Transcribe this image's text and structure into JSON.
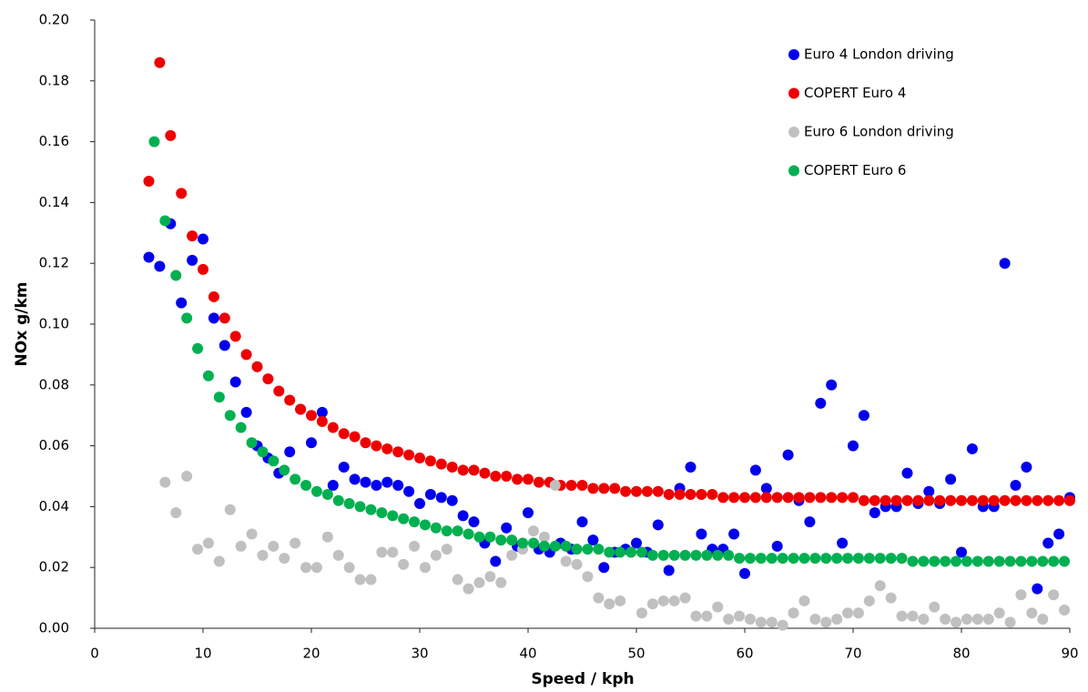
{
  "chart_data": {
    "type": "scatter",
    "xlabel": "Speed / kph",
    "ylabel": "NOx g/km",
    "xlim": [
      0,
      90
    ],
    "xticks": [
      0,
      10,
      20,
      30,
      40,
      50,
      60,
      70,
      80,
      90
    ],
    "ylim": [
      0,
      0.2
    ],
    "yticks": [
      {
        "value": 0,
        "label": "0.00"
      },
      {
        "value": 0.02,
        "label": "0.02"
      },
      {
        "value": 0.04,
        "label": "0.04"
      },
      {
        "value": 0.06,
        "label": "0.06"
      },
      {
        "value": 0.08,
        "label": "0.08"
      },
      {
        "value": 0.1,
        "label": "0.10"
      },
      {
        "value": 0.12,
        "label": "0.12"
      },
      {
        "value": 0.14,
        "label": "0.14"
      },
      {
        "value": 0.16,
        "label": "0.16"
      },
      {
        "value": 0.18,
        "label": "0.18"
      },
      {
        "value": 0.2,
        "label": "0.20"
      }
    ],
    "legend": "top-right",
    "series": [
      {
        "name": "Euro 4 London driving",
        "color": "#0000ee",
        "x": [
          5,
          6,
          7,
          8,
          9,
          10,
          11,
          12,
          13,
          14,
          15,
          16,
          17,
          18,
          19,
          20,
          21,
          22,
          23,
          24,
          25,
          26,
          27,
          28,
          29,
          30,
          31,
          32,
          33,
          34,
          35,
          36,
          37,
          38,
          39,
          40,
          41,
          42,
          43,
          44,
          45,
          46,
          47,
          48,
          49,
          50,
          51,
          52,
          53,
          54,
          55,
          56,
          57,
          58,
          59,
          60,
          61,
          62,
          63,
          64,
          65,
          66,
          67,
          68,
          69,
          70,
          71,
          72,
          73,
          74,
          75,
          76,
          77,
          78,
          79,
          80,
          81,
          82,
          83,
          84,
          85,
          86,
          87,
          88,
          89,
          90
        ],
        "values": [
          0.122,
          0.119,
          0.133,
          0.107,
          0.121,
          0.128,
          0.102,
          0.093,
          0.081,
          0.071,
          0.06,
          0.056,
          0.051,
          0.058,
          0.072,
          0.061,
          0.071,
          0.047,
          0.053,
          0.049,
          0.048,
          0.047,
          0.048,
          0.047,
          0.045,
          0.041,
          0.044,
          0.043,
          0.042,
          0.037,
          0.035,
          0.028,
          0.022,
          0.033,
          0.027,
          0.038,
          0.026,
          0.025,
          0.028,
          0.026,
          0.035,
          0.029,
          0.02,
          0.025,
          0.026,
          0.028,
          0.025,
          0.034,
          0.019,
          0.046,
          0.053,
          0.031,
          0.026,
          0.026,
          0.031,
          0.018,
          0.052,
          0.046,
          0.027,
          0.057,
          0.042,
          0.035,
          0.074,
          0.08,
          0.028,
          0.06,
          0.07,
          0.038,
          0.04,
          0.04,
          0.051,
          0.041,
          0.045,
          0.041,
          0.049,
          0.025,
          0.059,
          0.04,
          0.04,
          0.12,
          0.047,
          0.053,
          0.013,
          0.028,
          0.031,
          0.043
        ]
      },
      {
        "name": "COPERT Euro 4",
        "color": "#ee0000",
        "x": [
          5,
          6,
          7,
          8,
          9,
          10,
          11,
          12,
          13,
          14,
          15,
          16,
          17,
          18,
          19,
          20,
          21,
          22,
          23,
          24,
          25,
          26,
          27,
          28,
          29,
          30,
          31,
          32,
          33,
          34,
          35,
          36,
          37,
          38,
          39,
          40,
          41,
          42,
          43,
          44,
          45,
          46,
          47,
          48,
          49,
          50,
          51,
          52,
          53,
          54,
          55,
          56,
          57,
          58,
          59,
          60,
          61,
          62,
          63,
          64,
          65,
          66,
          67,
          68,
          69,
          70,
          71,
          72,
          73,
          74,
          75,
          76,
          77,
          78,
          79,
          80,
          81,
          82,
          83,
          84,
          85,
          86,
          87,
          88,
          89,
          90
        ],
        "values": [
          0.147,
          0.186,
          0.162,
          0.143,
          0.129,
          0.118,
          0.109,
          0.102,
          0.096,
          0.09,
          0.086,
          0.082,
          0.078,
          0.075,
          0.072,
          0.07,
          0.068,
          0.066,
          0.064,
          0.063,
          0.061,
          0.06,
          0.059,
          0.058,
          0.057,
          0.056,
          0.055,
          0.054,
          0.053,
          0.052,
          0.052,
          0.051,
          0.05,
          0.05,
          0.049,
          0.049,
          0.048,
          0.048,
          0.047,
          0.047,
          0.047,
          0.046,
          0.046,
          0.046,
          0.045,
          0.045,
          0.045,
          0.045,
          0.044,
          0.044,
          0.044,
          0.044,
          0.044,
          0.043,
          0.043,
          0.043,
          0.043,
          0.043,
          0.043,
          0.043,
          0.043,
          0.043,
          0.043,
          0.043,
          0.043,
          0.043,
          0.042,
          0.042,
          0.042,
          0.042,
          0.042,
          0.042,
          0.042,
          0.042,
          0.042,
          0.042,
          0.042,
          0.042,
          0.042,
          0.042,
          0.042,
          0.042,
          0.042,
          0.042,
          0.042,
          0.042
        ]
      },
      {
        "name": "Euro 6 London driving",
        "color": "#c0c0c0",
        "x": [
          6.5,
          7.5,
          8.5,
          9.5,
          10.5,
          11.5,
          12.5,
          13.5,
          14.5,
          15.5,
          16.5,
          17.5,
          18.5,
          19.5,
          20.5,
          21.5,
          22.5,
          23.5,
          24.5,
          25.5,
          26.5,
          27.5,
          28.5,
          29.5,
          30.5,
          31.5,
          32.5,
          33.5,
          34.5,
          35.5,
          36.5,
          37.5,
          38.5,
          39.5,
          40.5,
          41.5,
          42.5,
          43.5,
          44.5,
          45.5,
          46.5,
          47.5,
          48.5,
          49.5,
          50.5,
          51.5,
          52.5,
          53.5,
          54.5,
          55.5,
          56.5,
          57.5,
          58.5,
          59.5,
          60.5,
          61.5,
          62.5,
          63.5,
          64.5,
          65.5,
          66.5,
          67.5,
          68.5,
          69.5,
          70.5,
          71.5,
          72.5,
          73.5,
          74.5,
          75.5,
          76.5,
          77.5,
          78.5,
          79.5,
          80.5,
          81.5,
          82.5,
          83.5,
          84.5,
          85.5,
          86.5,
          87.5,
          88.5,
          89.5
        ],
        "values": [
          0.048,
          0.038,
          0.05,
          0.026,
          0.028,
          0.022,
          0.039,
          0.027,
          0.031,
          0.024,
          0.027,
          0.023,
          0.028,
          0.02,
          0.02,
          0.03,
          0.024,
          0.02,
          0.016,
          0.016,
          0.025,
          0.025,
          0.021,
          0.027,
          0.02,
          0.024,
          0.026,
          0.016,
          0.013,
          0.015,
          0.017,
          0.015,
          0.024,
          0.026,
          0.032,
          0.03,
          0.047,
          0.022,
          0.021,
          0.017,
          0.01,
          0.008,
          0.009,
          0.025,
          0.005,
          0.008,
          0.009,
          0.009,
          0.01,
          0.004,
          0.004,
          0.007,
          0.003,
          0.004,
          0.003,
          0.002,
          0.002,
          0.001,
          0.005,
          0.009,
          0.003,
          0.002,
          0.003,
          0.005,
          0.005,
          0.009,
          0.014,
          0.01,
          0.004,
          0.004,
          0.003,
          0.007,
          0.003,
          0.002,
          0.003,
          0.003,
          0.003,
          0.005,
          0.002,
          0.011,
          0.005,
          0.003,
          0.011,
          0.006
        ]
      },
      {
        "name": "COPERT Euro 6",
        "color": "#00b050",
        "x": [
          5.5,
          6.5,
          7.5,
          8.5,
          9.5,
          10.5,
          11.5,
          12.5,
          13.5,
          14.5,
          15.5,
          16.5,
          17.5,
          18.5,
          19.5,
          20.5,
          21.5,
          22.5,
          23.5,
          24.5,
          25.5,
          26.5,
          27.5,
          28.5,
          29.5,
          30.5,
          31.5,
          32.5,
          33.5,
          34.5,
          35.5,
          36.5,
          37.5,
          38.5,
          39.5,
          40.5,
          41.5,
          42.5,
          43.5,
          44.5,
          45.5,
          46.5,
          47.5,
          48.5,
          49.5,
          50.5,
          51.5,
          52.5,
          53.5,
          54.5,
          55.5,
          56.5,
          57.5,
          58.5,
          59.5,
          60.5,
          61.5,
          62.5,
          63.5,
          64.5,
          65.5,
          66.5,
          67.5,
          68.5,
          69.5,
          70.5,
          71.5,
          72.5,
          73.5,
          74.5,
          75.5,
          76.5,
          77.5,
          78.5,
          79.5,
          80.5,
          81.5,
          82.5,
          83.5,
          84.5,
          85.5,
          86.5,
          87.5,
          88.5,
          89.5
        ],
        "values": [
          0.16,
          0.134,
          0.116,
          0.102,
          0.092,
          0.083,
          0.076,
          0.07,
          0.066,
          0.061,
          0.058,
          0.055,
          0.052,
          0.049,
          0.047,
          0.045,
          0.044,
          0.042,
          0.041,
          0.04,
          0.039,
          0.038,
          0.037,
          0.036,
          0.035,
          0.034,
          0.033,
          0.032,
          0.032,
          0.031,
          0.03,
          0.03,
          0.029,
          0.029,
          0.028,
          0.028,
          0.027,
          0.027,
          0.027,
          0.026,
          0.026,
          0.026,
          0.025,
          0.025,
          0.025,
          0.025,
          0.024,
          0.024,
          0.024,
          0.024,
          0.024,
          0.024,
          0.024,
          0.024,
          0.023,
          0.023,
          0.023,
          0.023,
          0.023,
          0.023,
          0.023,
          0.023,
          0.023,
          0.023,
          0.023,
          0.023,
          0.023,
          0.023,
          0.023,
          0.023,
          0.022,
          0.022,
          0.022,
          0.022,
          0.022,
          0.022,
          0.022,
          0.022,
          0.022,
          0.022,
          0.022,
          0.022,
          0.022,
          0.022,
          0.022
        ]
      }
    ]
  }
}
